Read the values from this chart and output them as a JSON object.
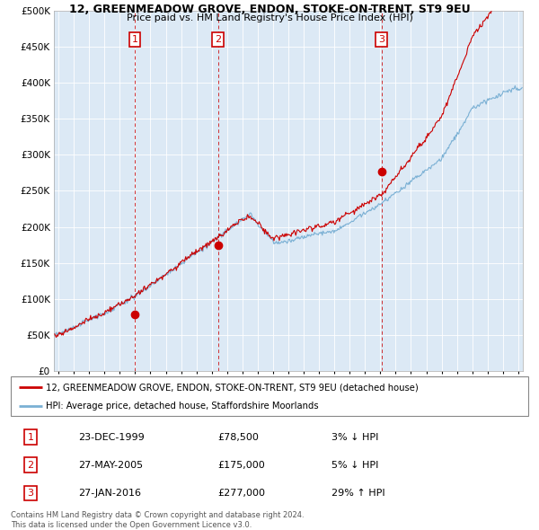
{
  "title": "12, GREENMEADOW GROVE, ENDON, STOKE-ON-TRENT, ST9 9EU",
  "subtitle": "Price paid vs. HM Land Registry's House Price Index (HPI)",
  "legend_line1": "12, GREENMEADOW GROVE, ENDON, STOKE-ON-TRENT, ST9 9EU (detached house)",
  "legend_line2": "HPI: Average price, detached house, Staffordshire Moorlands",
  "sale_color": "#cc0000",
  "hpi_color": "#7ab0d4",
  "bg_color": "#dce9f5",
  "transactions": [
    {
      "num": 1,
      "date": "23-DEC-1999",
      "price": 78500,
      "x": 1999.97,
      "pct": "3%",
      "dir": "↓"
    },
    {
      "num": 2,
      "date": "27-MAY-2005",
      "price": 175000,
      "x": 2005.4,
      "pct": "5%",
      "dir": "↓"
    },
    {
      "num": 3,
      "date": "27-JAN-2016",
      "price": 277000,
      "x": 2016.07,
      "pct": "29%",
      "dir": "↑"
    }
  ],
  "footer_line1": "Contains HM Land Registry data © Crown copyright and database right 2024.",
  "footer_line2": "This data is licensed under the Open Government Licence v3.0.",
  "ylim": [
    0,
    500000
  ],
  "yticks": [
    0,
    50000,
    100000,
    150000,
    200000,
    250000,
    300000,
    350000,
    400000,
    450000,
    500000
  ],
  "xlim_start": 1994.7,
  "xlim_end": 2025.3
}
